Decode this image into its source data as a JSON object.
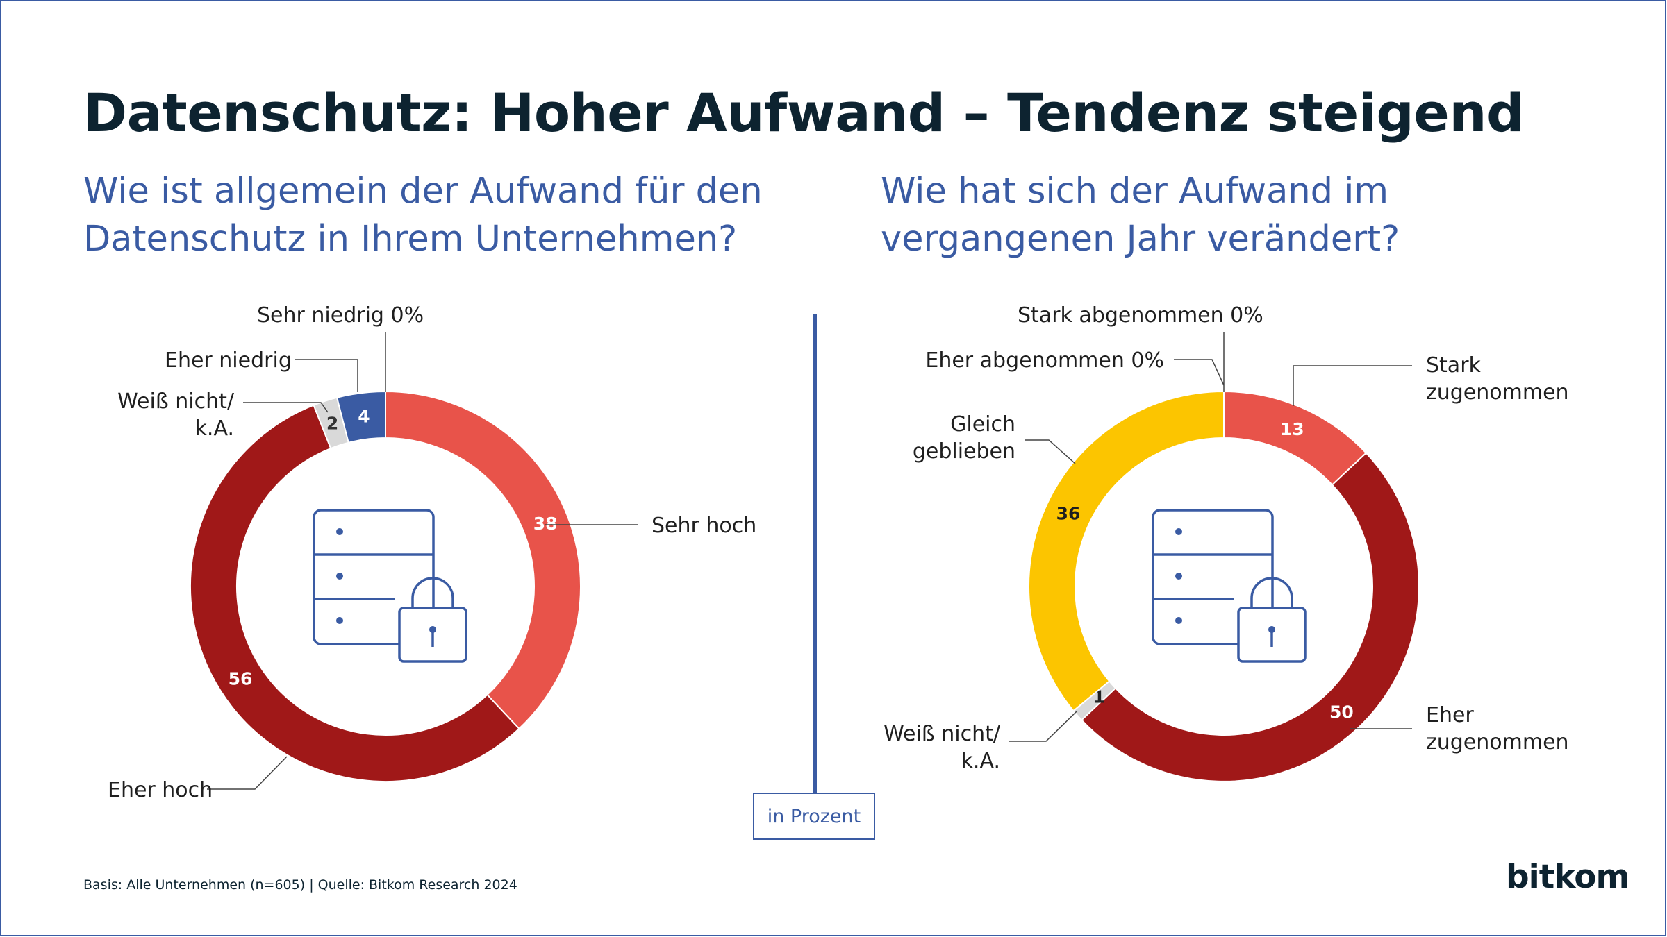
{
  "title": "Datenschutz: Hoher Aufwand – Tendenz steigend",
  "unit_label": "in Prozent",
  "basis": "Basis: Alle Unternehmen (n=605) | Quelle: Bitkom Research 2024",
  "logo": "bitkom",
  "colors": {
    "accent": "#3a5ba3",
    "title": "#0d2330",
    "sehr_hoch": "#e8534a",
    "eher_hoch": "#a01818",
    "weiss_nicht": "#d9d9d9",
    "eher_niedrig": "#3a5ba3",
    "gleich": "#fcc500"
  },
  "chart_data": [
    {
      "type": "pie",
      "title": "Wie ist allgemein der Aufwand für den Datenschutz in Ihrem Unternehmen?",
      "categories": [
        "Sehr hoch",
        "Eher hoch",
        "Weiß nicht/ k.A.",
        "Eher niedrig",
        "Sehr niedrig"
      ],
      "values": [
        38,
        56,
        2,
        4,
        0
      ],
      "value_labels": [
        "38",
        "56",
        "2",
        "4",
        "0%"
      ],
      "unit": "in Prozent"
    },
    {
      "type": "pie",
      "title": "Wie hat sich der Aufwand im vergangenen Jahr verändert?",
      "categories": [
        "Stark zugenommen",
        "Eher zugenommen",
        "Weiß nicht/ k.A.",
        "Gleich geblieben",
        "Eher abgenommen",
        "Stark abgenommen"
      ],
      "values": [
        13,
        50,
        1,
        36,
        0,
        0
      ],
      "value_labels": [
        "13",
        "50",
        "1",
        "36",
        "0%",
        "0%"
      ],
      "unit": "in Prozent"
    }
  ]
}
